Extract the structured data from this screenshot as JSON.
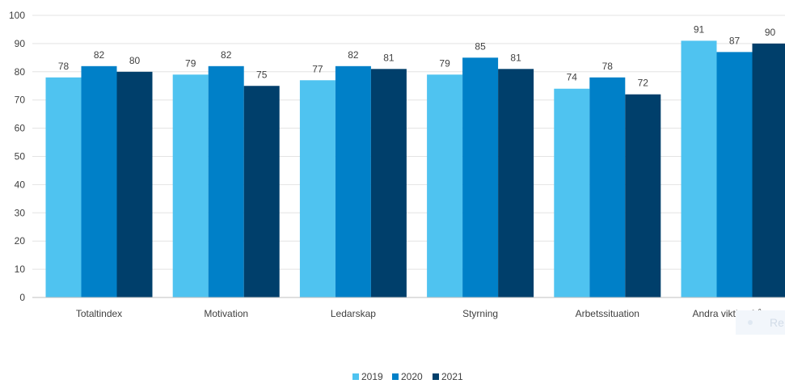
{
  "chart_data": {
    "type": "bar",
    "categories": [
      "Totaltindex",
      "Motivation",
      "Ledarskap",
      "Styrning",
      "Arbetssituation",
      "Andra viktiga frågor"
    ],
    "series": [
      {
        "name": "2019",
        "color": "#4fc3f0",
        "values": [
          78,
          79,
          77,
          79,
          74,
          91
        ]
      },
      {
        "name": "2020",
        "color": "#0080c8",
        "values": [
          82,
          82,
          82,
          85,
          78,
          87
        ]
      },
      {
        "name": "2021",
        "color": "#003f6b",
        "values": [
          80,
          75,
          81,
          81,
          72,
          90
        ]
      }
    ],
    "ylim": [
      0,
      100
    ],
    "yticks": [
      0,
      10,
      20,
      30,
      40,
      50,
      60,
      70,
      80,
      90,
      100
    ],
    "grid": true,
    "legend_position": "bottom-center",
    "title": "",
    "xlabel": "",
    "ylabel": ""
  },
  "overlay": {
    "label": "Re"
  }
}
